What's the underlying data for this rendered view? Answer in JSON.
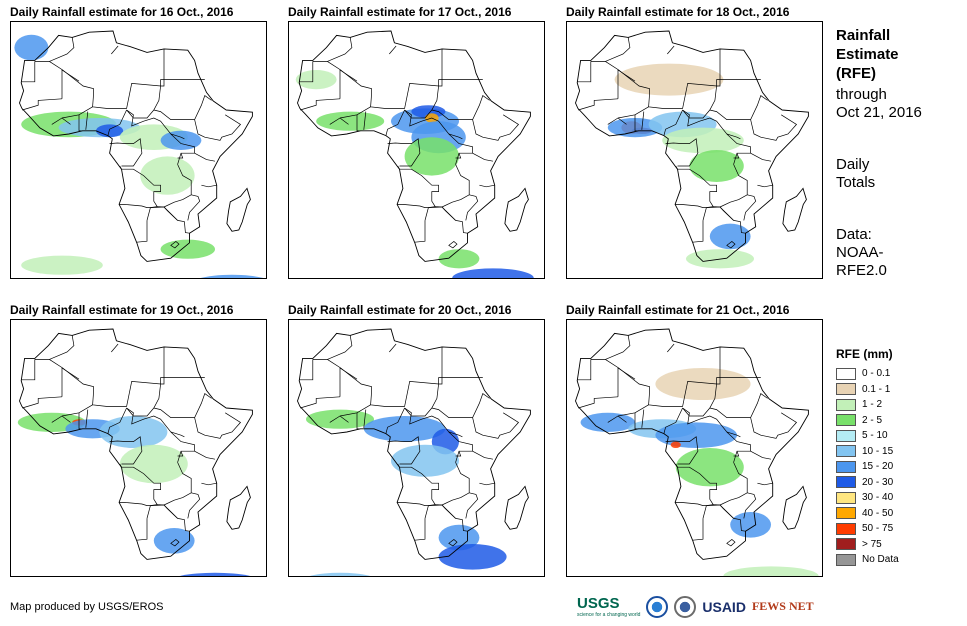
{
  "panels": [
    {
      "title": "Daily Rainfall estimate for 16 Oct., 2016"
    },
    {
      "title": "Daily Rainfall estimate for 17 Oct., 2016"
    },
    {
      "title": "Daily Rainfall estimate for 18 Oct., 2016"
    },
    {
      "title": "Daily Rainfall estimate for 19 Oct., 2016"
    },
    {
      "title": "Daily Rainfall estimate for 20 Oct., 2016"
    },
    {
      "title": "Daily Rainfall estimate for 21 Oct., 2016"
    }
  ],
  "side": {
    "title": "Rainfall\nEstimate\n(RFE)",
    "through": "through\nOct 21, 2016",
    "totals": "Daily\nTotals",
    "source": "Data:\nNOAA-\nRFE2.0"
  },
  "legend": {
    "title": "RFE (mm)",
    "items": [
      {
        "label": "0 - 0.1",
        "color": "#ffffff"
      },
      {
        "label": "0.1 - 1",
        "color": "#e8d3b4"
      },
      {
        "label": "1 - 2",
        "color": "#c2f0b8"
      },
      {
        "label": "2 - 5",
        "color": "#78e06a"
      },
      {
        "label": "5 - 10",
        "color": "#b4ecf4"
      },
      {
        "label": "10 - 15",
        "color": "#82c4f0"
      },
      {
        "label": "15 - 20",
        "color": "#4c96ee"
      },
      {
        "label": "20 - 30",
        "color": "#1e5ae6"
      },
      {
        "label": "30 - 40",
        "color": "#ffe680"
      },
      {
        "label": "40 - 50",
        "color": "#ffa800"
      },
      {
        "label": "50 - 75",
        "color": "#ff3c00"
      },
      {
        "label": "> 75",
        "color": "#a01e1e"
      },
      {
        "label": "No Data",
        "color": "#969696"
      }
    ]
  },
  "credit": "Map produced by USGS/EROS",
  "logos": {
    "usgs": "USGS",
    "usgs_tagline": "science for a changing world",
    "usaid": "USAID",
    "fews": "FEWS NET"
  },
  "rain_zones": [
    [
      [
        "#78e06a",
        -3,
        8,
        14,
        4
      ],
      [
        "#82c4f0",
        6,
        7,
        12,
        3
      ],
      [
        "#1e5ae6",
        9,
        6,
        4,
        2
      ],
      [
        "#c2f0b8",
        22,
        4,
        10,
        4
      ],
      [
        "#4c96ee",
        30,
        3,
        6,
        3
      ],
      [
        "#c2f0b8",
        26,
        -8,
        8,
        6
      ],
      [
        "#78e06a",
        32,
        -31,
        8,
        3
      ],
      [
        "#4c96ee",
        45,
        -43,
        14,
        4
      ],
      [
        "#ffe680",
        40,
        -42,
        3,
        1
      ],
      [
        "#c2f0b8",
        -5,
        -36,
        12,
        3
      ],
      [
        "#4c96ee",
        -14,
        32,
        5,
        4
      ]
    ],
    [
      [
        "#78e06a",
        -2,
        9,
        10,
        3
      ],
      [
        "#4c96ee",
        20,
        9,
        10,
        4
      ],
      [
        "#1e5ae6",
        21,
        12,
        5,
        2
      ],
      [
        "#ffa800",
        22,
        10,
        2,
        1.5
      ],
      [
        "#4c96ee",
        24,
        4,
        8,
        5
      ],
      [
        "#78e06a",
        22,
        -2,
        8,
        6
      ],
      [
        "#c2f0b8",
        -12,
        22,
        6,
        3
      ],
      [
        "#1e5ae6",
        40,
        -40,
        12,
        3
      ],
      [
        "#78e06a",
        30,
        -34,
        6,
        3
      ]
    ],
    [
      [
        "#ff3c00",
        -1,
        7,
        3,
        2
      ],
      [
        "#a01e1e",
        2,
        6,
        3,
        1
      ],
      [
        "#4c96ee",
        0,
        7,
        8,
        3
      ],
      [
        "#82c4f0",
        14,
        8,
        10,
        4
      ],
      [
        "#c2f0b8",
        20,
        3,
        12,
        4
      ],
      [
        "#78e06a",
        24,
        -5,
        8,
        5
      ],
      [
        "#4c96ee",
        28,
        -27,
        6,
        4
      ],
      [
        "#c2f0b8",
        25,
        -34,
        10,
        3
      ],
      [
        "#e8d3b4",
        10,
        22,
        16,
        5
      ]
    ],
    [
      [
        "#78e06a",
        -8,
        8,
        10,
        3
      ],
      [
        "#ff3c00",
        0,
        8,
        2,
        1
      ],
      [
        "#4c96ee",
        4,
        6,
        8,
        3
      ],
      [
        "#82c4f0",
        16,
        5,
        10,
        5
      ],
      [
        "#c2f0b8",
        22,
        -5,
        10,
        6
      ],
      [
        "#4c96ee",
        28,
        -29,
        6,
        4
      ],
      [
        "#1e5ae6",
        40,
        -42,
        14,
        3
      ],
      [
        "#82c4f0",
        -5,
        -43,
        12,
        3
      ]
    ],
    [
      [
        "#78e06a",
        -5,
        9,
        10,
        3
      ],
      [
        "#4c96ee",
        14,
        6,
        12,
        4
      ],
      [
        "#1e5ae6",
        26,
        2,
        4,
        4
      ],
      [
        "#82c4f0",
        20,
        -4,
        10,
        5
      ],
      [
        "#4c96ee",
        30,
        -28,
        6,
        4
      ],
      [
        "#1e5ae6",
        34,
        -34,
        10,
        4
      ],
      [
        "#82c4f0",
        -5,
        -42,
        12,
        3
      ]
    ],
    [
      [
        "#4c96ee",
        -8,
        8,
        8,
        3
      ],
      [
        "#82c4f0",
        8,
        6,
        10,
        3
      ],
      [
        "#4c96ee",
        18,
        4,
        12,
        4
      ],
      [
        "#ff3c00",
        12,
        1,
        1.5,
        1
      ],
      [
        "#78e06a",
        22,
        -6,
        10,
        6
      ],
      [
        "#4c96ee",
        34,
        -24,
        6,
        4
      ],
      [
        "#c2f0b8",
        40,
        -40,
        14,
        3
      ],
      [
        "#e8d3b4",
        20,
        20,
        14,
        5
      ]
    ]
  ]
}
